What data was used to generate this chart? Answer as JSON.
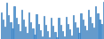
{
  "values": [
    10.5,
    8.8,
    7.2,
    12.5,
    9.8,
    8.2,
    6.8,
    11.8,
    9.2,
    7.8,
    6.2,
    11.0,
    8.8,
    7.2,
    5.8,
    10.5,
    8.3,
    6.8,
    5.4,
    10.0,
    7.9,
    6.5,
    5.1,
    9.6,
    7.6,
    6.2,
    4.9,
    9.3,
    7.5,
    6.1,
    4.8,
    9.2,
    7.6,
    6.3,
    5.0,
    9.4,
    7.9,
    6.6,
    5.3,
    9.8,
    8.3,
    7.0,
    5.8,
    10.3,
    8.8,
    7.5,
    6.4,
    11.0,
    9.4,
    8.1,
    7.1,
    11.8,
    10.2,
    8.8,
    7.9,
    12.8
  ],
  "bar_color": "#5b9bd5",
  "edge_color": "#2e75b6",
  "background_color": "#ffffff",
  "baseline": 4.5,
  "ylim_min": 4.5,
  "ylim_max": 13.2
}
